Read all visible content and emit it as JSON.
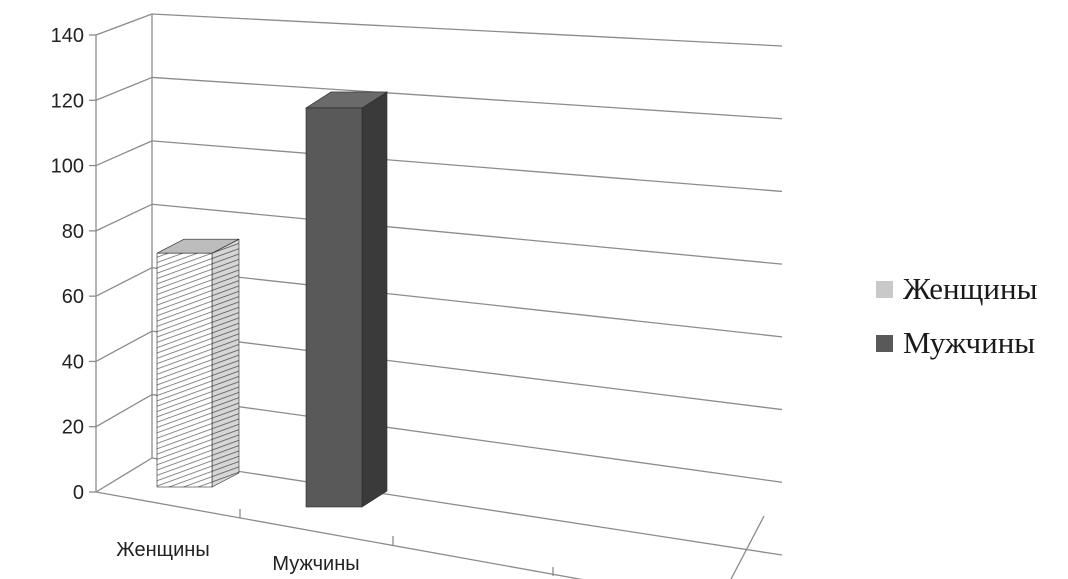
{
  "chart_data": {
    "type": "bar",
    "title": "",
    "xlabel": "",
    "ylabel": "",
    "categories": [
      "Женщины",
      "Мужчины"
    ],
    "series": [
      {
        "name": "Женщины",
        "values": [
          75,
          null
        ],
        "color": "#c9c9c9",
        "pattern": "diagonal-hatch"
      },
      {
        "name": "Мужчины",
        "values": [
          null,
          128
        ],
        "color": "#595959",
        "pattern": "solid"
      }
    ],
    "y_ticks": [
      "0",
      "20",
      "40",
      "60",
      "80",
      "100",
      "120",
      "140"
    ],
    "ylim": [
      0,
      140
    ],
    "grid": true,
    "legend_position": "right"
  }
}
